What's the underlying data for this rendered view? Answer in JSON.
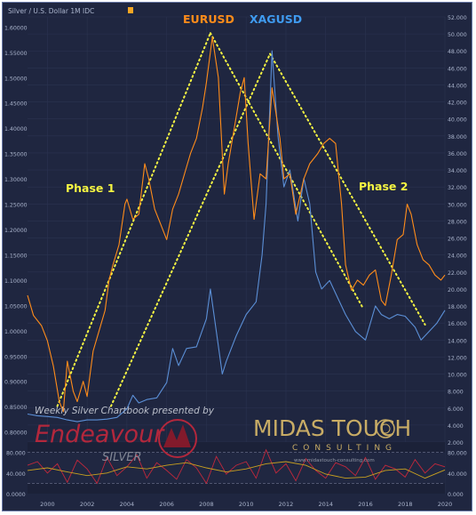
{
  "header": {
    "symbol_text": "Silver / U.S. Dollar  1M  IDC",
    "flag_color": "#f5a623"
  },
  "chart_data": {
    "type": "line",
    "title": "",
    "series": [
      {
        "name": "EURUSD",
        "color": "#ff8c1a",
        "axis": "left",
        "x": [
          1999.0,
          1999.3,
          1999.7,
          2000.0,
          2000.3,
          2000.6,
          2000.8,
          2001.0,
          2001.3,
          2001.5,
          2001.8,
          2002.0,
          2002.3,
          2002.6,
          2002.9,
          2003.1,
          2003.3,
          2003.6,
          2003.9,
          2004.0,
          2004.3,
          2004.6,
          2004.9,
          2005.1,
          2005.4,
          2005.7,
          2006.0,
          2006.3,
          2006.6,
          2006.9,
          2007.2,
          2007.5,
          2007.8,
          2008.0,
          2008.3,
          2008.6,
          2008.9,
          2009.1,
          2009.4,
          2009.7,
          2009.9,
          2010.1,
          2010.4,
          2010.7,
          2011.0,
          2011.3,
          2011.7,
          2011.9,
          2012.2,
          2012.5,
          2012.9,
          2013.2,
          2013.6,
          2013.9,
          2014.2,
          2014.5,
          2014.8,
          2015.0,
          2015.3,
          2015.6,
          2015.9,
          2016.2,
          2016.5,
          2016.8,
          2017.0,
          2017.3,
          2017.6,
          2017.9,
          2018.1,
          2018.3,
          2018.6,
          2018.9,
          2019.2,
          2019.5,
          2019.8,
          2020.0
        ],
        "values": [
          1.07,
          1.03,
          1.01,
          0.98,
          0.93,
          0.86,
          0.84,
          0.94,
          0.88,
          0.86,
          0.9,
          0.87,
          0.96,
          1.0,
          1.04,
          1.1,
          1.13,
          1.17,
          1.25,
          1.26,
          1.22,
          1.23,
          1.33,
          1.3,
          1.24,
          1.21,
          1.18,
          1.24,
          1.27,
          1.31,
          1.35,
          1.38,
          1.44,
          1.49,
          1.58,
          1.5,
          1.27,
          1.33,
          1.4,
          1.47,
          1.5,
          1.37,
          1.22,
          1.31,
          1.3,
          1.48,
          1.38,
          1.3,
          1.31,
          1.23,
          1.3,
          1.33,
          1.35,
          1.37,
          1.38,
          1.37,
          1.25,
          1.13,
          1.08,
          1.1,
          1.09,
          1.11,
          1.12,
          1.06,
          1.05,
          1.11,
          1.18,
          1.19,
          1.25,
          1.23,
          1.17,
          1.14,
          1.13,
          1.11,
          1.1,
          1.11
        ]
      },
      {
        "name": "XAGUSD",
        "color": "#5b8fd6",
        "axis": "right",
        "x": [
          1999.0,
          1999.5,
          2000.0,
          2000.5,
          2001.0,
          2001.5,
          2002.0,
          2002.5,
          2003.0,
          2003.5,
          2004.0,
          2004.3,
          2004.6,
          2005.0,
          2005.5,
          2006.0,
          2006.3,
          2006.6,
          2007.0,
          2007.5,
          2008.0,
          2008.2,
          2008.5,
          2008.8,
          2009.0,
          2009.5,
          2010.0,
          2010.5,
          2010.8,
          2011.0,
          2011.3,
          2011.6,
          2011.9,
          2012.2,
          2012.6,
          2012.9,
          2013.2,
          2013.5,
          2013.8,
          2014.2,
          2014.6,
          2015.0,
          2015.5,
          2016.0,
          2016.5,
          2016.8,
          2017.2,
          2017.6,
          2018.0,
          2018.5,
          2018.8,
          2019.2,
          2019.6,
          2020.0
        ],
        "values": [
          5.3,
          5.1,
          5.0,
          4.9,
          4.6,
          4.4,
          4.6,
          4.6,
          4.7,
          4.9,
          5.9,
          7.5,
          6.6,
          7.0,
          7.2,
          9.0,
          13.0,
          11.0,
          13.0,
          13.2,
          16.5,
          20.0,
          15.0,
          10.0,
          11.5,
          14.5,
          17.0,
          18.5,
          24.0,
          30.0,
          48.0,
          38.0,
          32.0,
          34.0,
          28.0,
          33.0,
          30.0,
          22.0,
          20.0,
          21.0,
          19.0,
          17.0,
          15.0,
          14.0,
          18.0,
          17.0,
          16.5,
          17.0,
          16.8,
          15.5,
          14.0,
          15.0,
          16.0,
          17.5
        ]
      }
    ],
    "xlim": [
      1999,
      2020
    ],
    "ylim_left": [
      0.78,
      1.62
    ],
    "ylim_right": [
      2,
      52
    ],
    "x_tick_labels": [
      "2000",
      "2002",
      "2004",
      "2006",
      "2008",
      "2010",
      "2012",
      "2014",
      "2016",
      "2018",
      "2020"
    ],
    "left_tick_labels": [
      "1.60000",
      "1.55000",
      "1.50000",
      "1.45000",
      "1.40000",
      "1.35000",
      "1.30000",
      "1.25000",
      "1.20000",
      "1.15000",
      "1.10000",
      "1.05000",
      "1.00000",
      "0.95000",
      "0.90000",
      "0.85000",
      "0.80000"
    ],
    "right_tick_labels": [
      "52.000",
      "50.000",
      "48.000",
      "46.000",
      "44.000",
      "42.000",
      "40.000",
      "38.000",
      "36.000",
      "34.000",
      "32.000",
      "30.000",
      "28.000",
      "26.000",
      "24.000",
      "22.000",
      "20.000",
      "18.000",
      "16.000",
      "14.000",
      "12.000",
      "10.000",
      "8.000",
      "6.000",
      "4.000",
      "2.000"
    ],
    "legend": [
      {
        "label": "EURUSD",
        "color": "#ff8c1a"
      },
      {
        "label": "XAGUSD",
        "color": "#3f9bf0"
      }
    ],
    "annotations": [
      "Phase 1",
      "Phase 2"
    ],
    "phase_lines": [
      {
        "from": [
          2000.5,
          0.851
        ],
        "to": [
          2008.2,
          1.588
        ]
      },
      {
        "from": [
          2008.2,
          1.588
        ],
        "to": [
          2015.9,
          1.043
        ]
      },
      {
        "from": [
          2003.2,
          0.851
        ],
        "to": [
          2011.2,
          1.547
        ]
      },
      {
        "from": [
          2011.2,
          1.547
        ],
        "to": [
          2019.0,
          1.012
        ]
      }
    ],
    "phase_line_color": "#f5f542",
    "grid": true
  },
  "indicator": {
    "left_labels": [
      "80.000",
      "40.000",
      "0.0000"
    ],
    "right_labels": [
      "80.000",
      "40.000",
      "0.000"
    ],
    "ylim": [
      0,
      100
    ],
    "bands": [
      80,
      20
    ],
    "series": [
      {
        "name": "",
        "color": "#c0283c",
        "x": [
          1999,
          1999.5,
          2000,
          2000.5,
          2001,
          2001.5,
          2002,
          2002.5,
          2003,
          2003.5,
          2004,
          2004.5,
          2005,
          2005.5,
          2006,
          2006.5,
          2007,
          2007.5,
          2008,
          2008.5,
          2009,
          2009.5,
          2010,
          2010.5,
          2011,
          2011.5,
          2012,
          2012.5,
          2013,
          2013.5,
          2014,
          2014.5,
          2015,
          2015.5,
          2016,
          2016.5,
          2017,
          2017.5,
          2018,
          2018.5,
          2019,
          2019.5,
          2020
        ],
        "values": [
          55,
          62,
          40,
          58,
          22,
          65,
          48,
          20,
          70,
          35,
          52,
          75,
          30,
          60,
          45,
          28,
          66,
          50,
          20,
          72,
          38,
          55,
          62,
          30,
          85,
          40,
          58,
          25,
          68,
          45,
          30,
          60,
          52,
          35,
          70,
          28,
          55,
          48,
          32,
          66,
          40,
          58,
          52
        ]
      },
      {
        "name": "",
        "color": "#c8a020",
        "x": [
          1999,
          2000,
          2001,
          2002,
          2003,
          2004,
          2005,
          2006,
          2007,
          2008,
          2009,
          2010,
          2011,
          2012,
          2013,
          2014,
          2015,
          2016,
          2017,
          2018,
          2019,
          2020
        ],
        "values": [
          45,
          50,
          42,
          35,
          40,
          52,
          48,
          55,
          60,
          50,
          42,
          48,
          58,
          62,
          55,
          38,
          30,
          32,
          45,
          48,
          30,
          46
        ]
      }
    ]
  },
  "watermark": {
    "presented_by": "Weekly Silver Chartbook presented by",
    "endeavour": "Endeavour",
    "silver": "SILVER",
    "midas": "MIDAS TOUCH",
    "consulting": "CONSULTING",
    "url": "www.midastouch-consulting.com"
  }
}
